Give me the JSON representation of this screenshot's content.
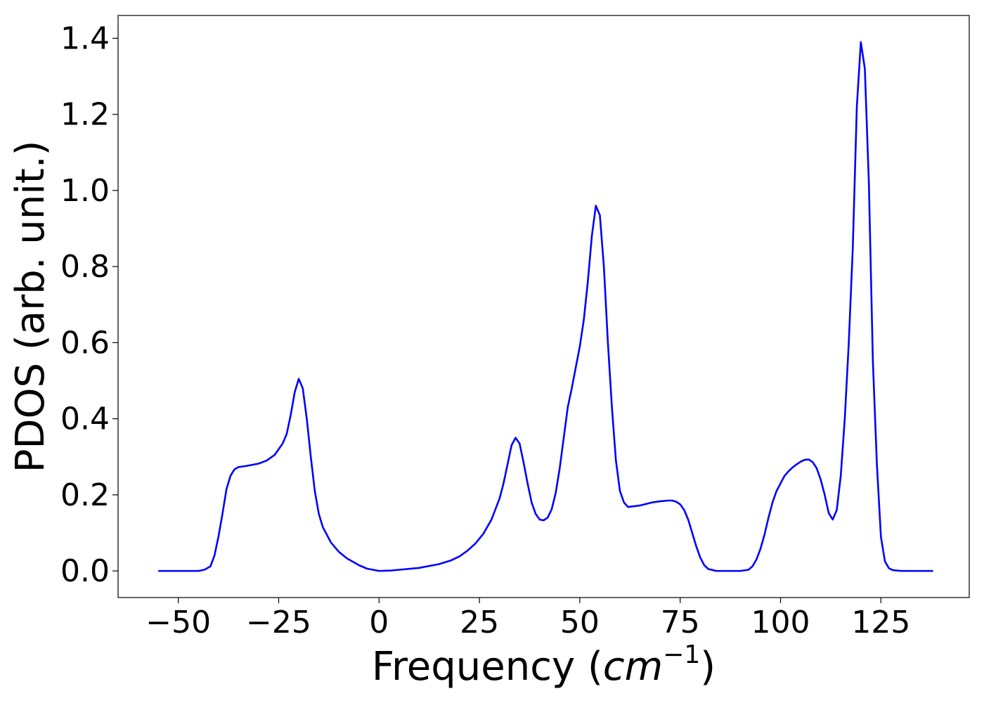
{
  "chart_data": {
    "type": "line",
    "title": "",
    "xlabel_prefix": "Frequency (",
    "xlabel_unit_base": "cm",
    "xlabel_unit_exponent": "−1",
    "xlabel_suffix": ")",
    "ylabel": "PDOS (arb. unit.)",
    "xlim": [
      -65,
      147
    ],
    "ylim": [
      -0.07,
      1.46
    ],
    "xticks": [
      -50,
      -25,
      0,
      25,
      50,
      75,
      100,
      125
    ],
    "xtick_labels": [
      "−50",
      "−25",
      "0",
      "25",
      "50",
      "75",
      "100",
      "125"
    ],
    "yticks": [
      0.0,
      0.2,
      0.4,
      0.6,
      0.8,
      1.0,
      1.2,
      1.4
    ],
    "ytick_labels": [
      "0.0",
      "0.2",
      "0.4",
      "0.6",
      "0.8",
      "1.0",
      "1.2",
      "1.4"
    ],
    "grid": false,
    "legend": "none",
    "series": [
      {
        "color": "#0000ff",
        "x": [
          -55,
          -50,
          -45,
          -43.5,
          -42,
          -41,
          -40,
          -39,
          -38,
          -37,
          -36,
          -35,
          -33,
          -30,
          -28,
          -26,
          -25,
          -24,
          -23,
          -22,
          -21,
          -20,
          -19,
          -18,
          -17,
          -16,
          -15,
          -14,
          -12,
          -10,
          -8,
          -5,
          -3,
          0,
          3,
          5,
          10,
          15,
          18,
          20,
          22,
          24,
          26,
          28,
          30,
          31,
          32,
          33,
          34,
          35,
          36,
          37,
          38,
          39,
          40,
          41,
          42,
          43,
          44,
          45,
          46,
          47,
          48,
          49,
          50,
          51,
          52,
          53,
          54,
          55,
          56,
          57,
          58,
          59,
          60,
          61,
          62,
          65,
          68,
          70,
          72,
          73,
          74,
          75,
          76,
          77,
          78,
          79,
          80,
          81,
          82,
          84,
          90,
          92,
          93,
          94,
          95,
          96,
          97,
          98,
          99,
          100,
          101,
          102,
          103,
          104,
          105,
          106,
          107,
          108,
          109,
          110,
          111,
          112,
          113,
          114,
          115,
          116,
          117,
          118,
          119,
          120,
          121,
          122,
          123,
          124,
          125,
          126,
          127,
          128,
          130,
          135,
          138
        ],
        "y": [
          0.0,
          0.0,
          0.0,
          0.003,
          0.012,
          0.04,
          0.09,
          0.15,
          0.215,
          0.25,
          0.267,
          0.273,
          0.276,
          0.282,
          0.29,
          0.305,
          0.32,
          0.335,
          0.36,
          0.41,
          0.47,
          0.505,
          0.48,
          0.4,
          0.3,
          0.21,
          0.15,
          0.115,
          0.075,
          0.05,
          0.033,
          0.015,
          0.006,
          0.0,
          0.001,
          0.003,
          0.008,
          0.018,
          0.028,
          0.038,
          0.053,
          0.072,
          0.098,
          0.135,
          0.19,
          0.23,
          0.28,
          0.33,
          0.35,
          0.335,
          0.285,
          0.23,
          0.18,
          0.15,
          0.135,
          0.133,
          0.14,
          0.162,
          0.205,
          0.27,
          0.35,
          0.43,
          0.48,
          0.535,
          0.59,
          0.66,
          0.76,
          0.88,
          0.96,
          0.935,
          0.8,
          0.6,
          0.43,
          0.29,
          0.21,
          0.18,
          0.168,
          0.172,
          0.18,
          0.183,
          0.185,
          0.185,
          0.182,
          0.175,
          0.16,
          0.135,
          0.1,
          0.065,
          0.035,
          0.015,
          0.005,
          0.0,
          0.0,
          0.003,
          0.012,
          0.03,
          0.058,
          0.095,
          0.14,
          0.18,
          0.21,
          0.23,
          0.25,
          0.262,
          0.272,
          0.28,
          0.287,
          0.292,
          0.293,
          0.286,
          0.27,
          0.24,
          0.2,
          0.152,
          0.135,
          0.16,
          0.25,
          0.4,
          0.6,
          0.85,
          1.22,
          1.39,
          1.32,
          1.02,
          0.55,
          0.28,
          0.09,
          0.025,
          0.007,
          0.002,
          0.0,
          0.0,
          0.0
        ]
      }
    ]
  }
}
